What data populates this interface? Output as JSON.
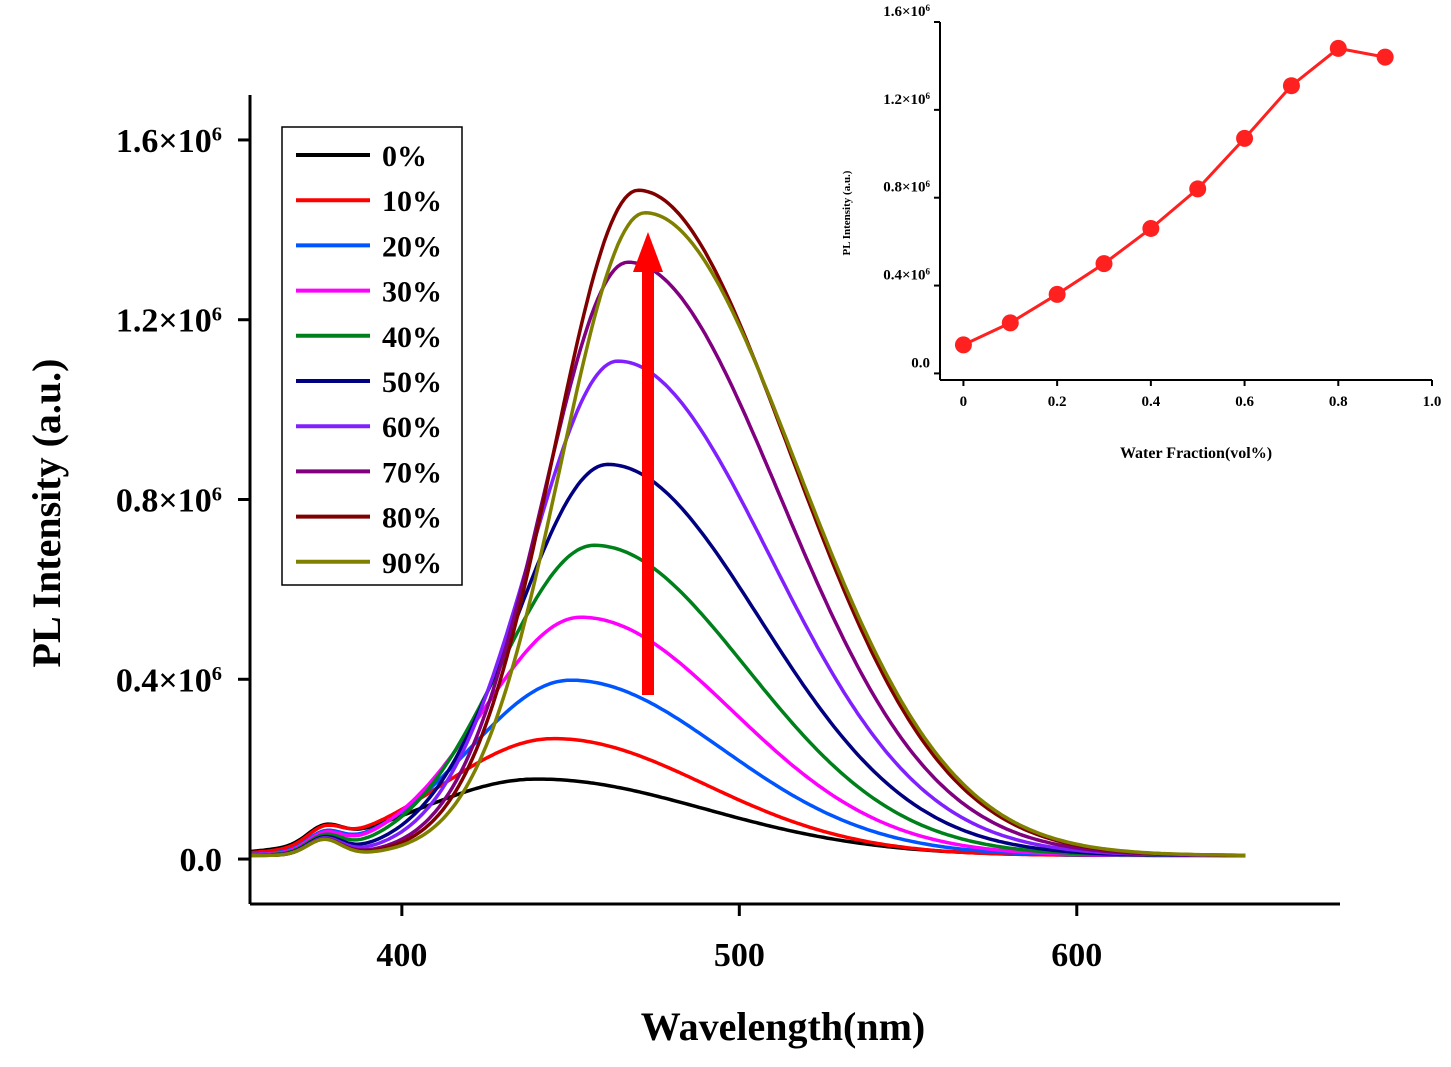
{
  "chart_data": [
    {
      "type": "line",
      "title": "",
      "xlabel": "Wavelength(nm)",
      "ylabel": "PL Intensity (a.u.)",
      "xlim": [
        355,
        678
      ],
      "ylim": [
        -0.1,
        1.7
      ],
      "x_ticks": [
        {
          "value": 400,
          "label": "400"
        },
        {
          "value": 500,
          "label": "500"
        },
        {
          "value": 600,
          "label": "600"
        }
      ],
      "y_ticks": [
        {
          "value": 0.0,
          "label": "0.0",
          "base": "",
          "exp": ""
        },
        {
          "value": 0.4,
          "label": "0.4×10",
          "base": "0.4×10",
          "exp": "6"
        },
        {
          "value": 0.8,
          "label": "0.8×10",
          "base": "0.8×10",
          "exp": "6"
        },
        {
          "value": 1.2,
          "label": "1.2×10",
          "base": "1.2×10",
          "exp": "6"
        },
        {
          "value": 1.6,
          "label": "1.6×10",
          "base": "1.6×10",
          "exp": "6"
        }
      ],
      "y_unit_multiplier": "×10^6",
      "legend_position": "top-left",
      "annotation": "red upward arrow indicating increasing intensity with water fraction",
      "arrow_color": "#ff0000",
      "series": [
        {
          "name": "0%",
          "color": "#000000",
          "peak_x": 440,
          "peak_y": 0.17,
          "width_l": 35,
          "width_r": 50
        },
        {
          "name": "10%",
          "color": "#ff0000",
          "peak_x": 445,
          "peak_y": 0.26,
          "width_l": 33,
          "width_r": 45
        },
        {
          "name": "20%",
          "color": "#0055ff",
          "peak_x": 450,
          "peak_y": 0.39,
          "width_l": 30,
          "width_r": 45
        },
        {
          "name": "30%",
          "color": "#ff00ff",
          "peak_x": 453,
          "peak_y": 0.53,
          "width_l": 29,
          "width_r": 45
        },
        {
          "name": "40%",
          "color": "#00801a",
          "peak_x": 457,
          "peak_y": 0.69,
          "width_l": 28,
          "width_r": 45
        },
        {
          "name": "50%",
          "color": "#000080",
          "peak_x": 461,
          "peak_y": 0.87,
          "width_l": 27,
          "width_r": 45
        },
        {
          "name": "60%",
          "color": "#8020ff",
          "peak_x": 464,
          "peak_y": 1.1,
          "width_l": 26,
          "width_r": 45
        },
        {
          "name": "70%",
          "color": "#800080",
          "peak_x": 467,
          "peak_y": 1.32,
          "width_l": 25,
          "width_r": 45
        },
        {
          "name": "80%",
          "color": "#800000",
          "peak_x": 470,
          "peak_y": 1.48,
          "width_l": 25,
          "width_r": 45
        },
        {
          "name": "90%",
          "color": "#808000",
          "peak_x": 472,
          "peak_y": 1.43,
          "width_l": 25,
          "width_r": 45
        }
      ],
      "x_range": [
        355,
        650
      ]
    },
    {
      "type": "scatter",
      "title": "",
      "xlabel": "Water Fraction(vol%)",
      "ylabel": "PL Intensity (a.u.)",
      "xlim": [
        -0.05,
        1.0
      ],
      "ylim": [
        -0.03,
        1.6
      ],
      "x_ticks": [
        {
          "value": 0,
          "label": "0"
        },
        {
          "value": 0.2,
          "label": "0.2"
        },
        {
          "value": 0.4,
          "label": "0.4"
        },
        {
          "value": 0.6,
          "label": "0.6"
        },
        {
          "value": 0.8,
          "label": "0.8"
        },
        {
          "value": 1.0,
          "label": "1.0"
        }
      ],
      "y_ticks": [
        {
          "value": 0.0,
          "label": "0.0",
          "base": "",
          "exp": ""
        },
        {
          "value": 0.4,
          "label": "0.4×10",
          "base": "0.4×10",
          "exp": "6"
        },
        {
          "value": 0.8,
          "label": "0.8×10",
          "base": "0.8×10",
          "exp": "6"
        },
        {
          "value": 1.2,
          "label": "1.2×10",
          "base": "1.2×10",
          "exp": "6"
        },
        {
          "value": 1.6,
          "label": "1.6×10",
          "base": "1.6×10",
          "exp": "6"
        }
      ],
      "color": "#ff2020",
      "x": [
        0,
        0.1,
        0.2,
        0.3,
        0.4,
        0.5,
        0.6,
        0.7,
        0.8,
        0.9
      ],
      "y": [
        0.13,
        0.23,
        0.36,
        0.5,
        0.66,
        0.84,
        1.07,
        1.31,
        1.48,
        1.44
      ]
    }
  ]
}
